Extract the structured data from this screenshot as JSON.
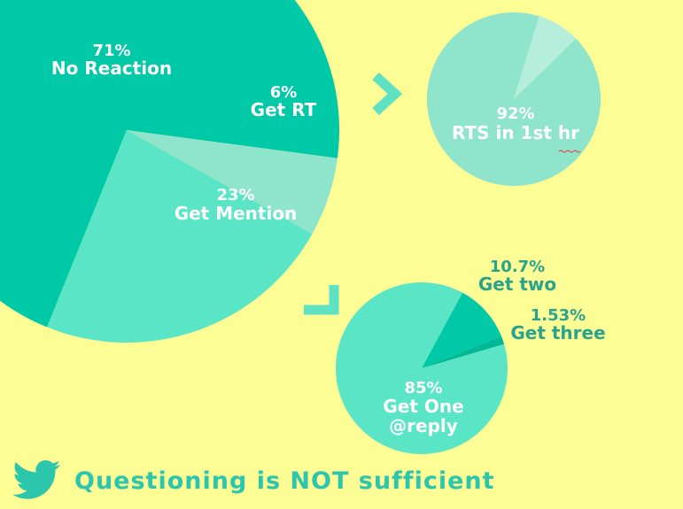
{
  "colors": {
    "background": "#fdfd96",
    "teal_dark": "#00c9a7",
    "teal_mid": "#5ae6c6",
    "teal_light": "#8ee5cb",
    "teal_pale": "#b5efdc",
    "teal_deep": "#00b896",
    "label_light": "#ffffff",
    "label_dark": "#2aa38c",
    "arrow": "#5fe1c3",
    "bird": "#2cc6ad"
  },
  "chart_data": [
    {
      "type": "pie",
      "id": "reaction",
      "slices": [
        {
          "label": "No Reaction",
          "value_label": "71%",
          "value": 71
        },
        {
          "label": "Get RT",
          "value_label": "6%",
          "value": 6
        },
        {
          "label": "Get Mention",
          "value_label": "23%",
          "value": 23
        }
      ]
    },
    {
      "type": "pie",
      "id": "retweets",
      "slices": [
        {
          "label": "",
          "value": 8
        },
        {
          "label": "RTS in 1st hr",
          "value_label": "92%",
          "value": 92
        }
      ]
    },
    {
      "type": "pie",
      "id": "replies",
      "slices": [
        {
          "label": "Get One @reply",
          "value_label": "85%",
          "value": 85
        },
        {
          "label": "Get two",
          "value_label": "10.7%",
          "value": 10.7
        },
        {
          "label": "Get three",
          "value_label": "1.53%",
          "value": 1.53
        }
      ]
    }
  ],
  "footer": {
    "caption": "Questioning is NOT sufficient",
    "icon": "twitter-bird-icon"
  }
}
